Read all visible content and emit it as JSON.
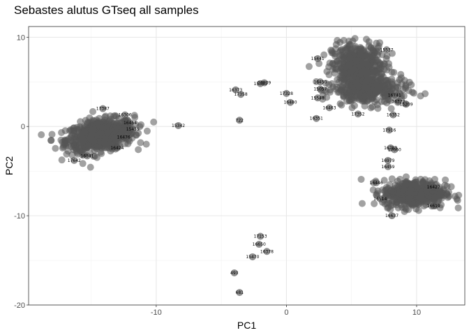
{
  "chart_data": {
    "type": "scatter",
    "title": "Sebastes alutus GTseq all samples",
    "xlabel": "PC1",
    "ylabel": "PC2",
    "xlim": [
      -19.8,
      13.7
    ],
    "ylim": [
      -20,
      11.2
    ],
    "x_ticks": [
      -10,
      0,
      10
    ],
    "x_tick_labels": [
      "-10",
      "0",
      "10"
    ],
    "y_ticks": [
      -20,
      -10,
      0,
      10
    ],
    "y_tick_labels": [
      "-20",
      "-10",
      "0",
      "10"
    ],
    "grid": true,
    "theme": "bw",
    "point_color": "#555555",
    "clusters": [
      {
        "cx": -14.3,
        "cy": -1.0,
        "sx": 1.3,
        "sy": 0.85,
        "n": 700,
        "tilt": 0.2
      },
      {
        "cx": 5.5,
        "cy": 6.5,
        "sx": 1.0,
        "sy": 1.4,
        "n": 500,
        "tilt": 0
      },
      {
        "cx": 6.5,
        "cy": 4.0,
        "sx": 1.4,
        "sy": 0.8,
        "n": 250,
        "tilt": 0
      },
      {
        "cx": 9.8,
        "cy": -7.5,
        "sx": 1.2,
        "sy": 0.75,
        "n": 500,
        "tilt": 0
      }
    ],
    "points": [
      {
        "x": -8.3,
        "y": 0.1,
        "label": "15342"
      },
      {
        "x": -16.3,
        "y": -3.8,
        "label": "17642"
      },
      {
        "x": -3.9,
        "y": 4.1,
        "label": "16373"
      },
      {
        "x": -3.5,
        "y": 3.6,
        "label": "17358"
      },
      {
        "x": -2.0,
        "y": 4.8,
        "label": "15350"
      },
      {
        "x": -1.7,
        "y": 4.9,
        "label": "16839"
      },
      {
        "x": -3.6,
        "y": 0.7,
        "label": "722"
      },
      {
        "x": 0.0,
        "y": 3.7,
        "label": "17328"
      },
      {
        "x": 0.3,
        "y": 2.7,
        "label": "16480"
      },
      {
        "x": 2.3,
        "y": 0.9,
        "label": "16351"
      },
      {
        "x": 8.2,
        "y": 1.3,
        "label": "16352"
      },
      {
        "x": 7.9,
        "y": -0.4,
        "label": "17916"
      },
      {
        "x": 8.0,
        "y": -2.4,
        "label": "16753"
      },
      {
        "x": 8.3,
        "y": -2.6,
        "label": "17660"
      },
      {
        "x": 7.8,
        "y": -3.8,
        "label": "16979"
      },
      {
        "x": 7.8,
        "y": -4.5,
        "label": "16459"
      },
      {
        "x": -2.0,
        "y": -12.3,
        "label": "17153"
      },
      {
        "x": -2.1,
        "y": -13.2,
        "label": "16650"
      },
      {
        "x": -1.5,
        "y": -14.0,
        "label": "16378"
      },
      {
        "x": -2.6,
        "y": -14.6,
        "label": "15470"
      },
      {
        "x": -4.0,
        "y": -16.4,
        "label": "493"
      },
      {
        "x": -3.6,
        "y": -18.6,
        "label": "681"
      },
      {
        "x": 2.4,
        "y": 7.6,
        "label": "15441"
      },
      {
        "x": 2.6,
        "y": 5.0,
        "label": "16450"
      },
      {
        "x": 2.4,
        "y": 3.2,
        "label": "15548"
      },
      {
        "x": 2.6,
        "y": 4.2,
        "label": "15057"
      },
      {
        "x": 3.3,
        "y": 2.1,
        "label": "16463"
      },
      {
        "x": 5.5,
        "y": 1.4,
        "label": "17352"
      },
      {
        "x": 8.3,
        "y": 3.5,
        "label": "16741"
      },
      {
        "x": 8.6,
        "y": 2.8,
        "label": "16372"
      },
      {
        "x": 9.2,
        "y": 2.5,
        "label": "15209"
      },
      {
        "x": 7.7,
        "y": 8.6,
        "label": "15537"
      },
      {
        "x": -12.4,
        "y": 1.3,
        "label": "16306"
      },
      {
        "x": -12.0,
        "y": 0.4,
        "label": "16454"
      },
      {
        "x": -11.8,
        "y": -0.3,
        "label": "15459"
      },
      {
        "x": -12.5,
        "y": -1.2,
        "label": "16476"
      },
      {
        "x": -13.0,
        "y": -2.4,
        "label": "16424"
      },
      {
        "x": -15.3,
        "y": -3.3,
        "label": "16841"
      },
      {
        "x": -14.1,
        "y": 2.0,
        "label": "17387"
      },
      {
        "x": 11.3,
        "y": -6.8,
        "label": "16427"
      },
      {
        "x": 11.3,
        "y": -8.9,
        "label": "16619"
      },
      {
        "x": 8.1,
        "y": -10.0,
        "label": "16637"
      },
      {
        "x": 7.2,
        "y": -8.1,
        "label": "16514"
      },
      {
        "x": 6.9,
        "y": -6.3,
        "label": "16446"
      }
    ]
  }
}
